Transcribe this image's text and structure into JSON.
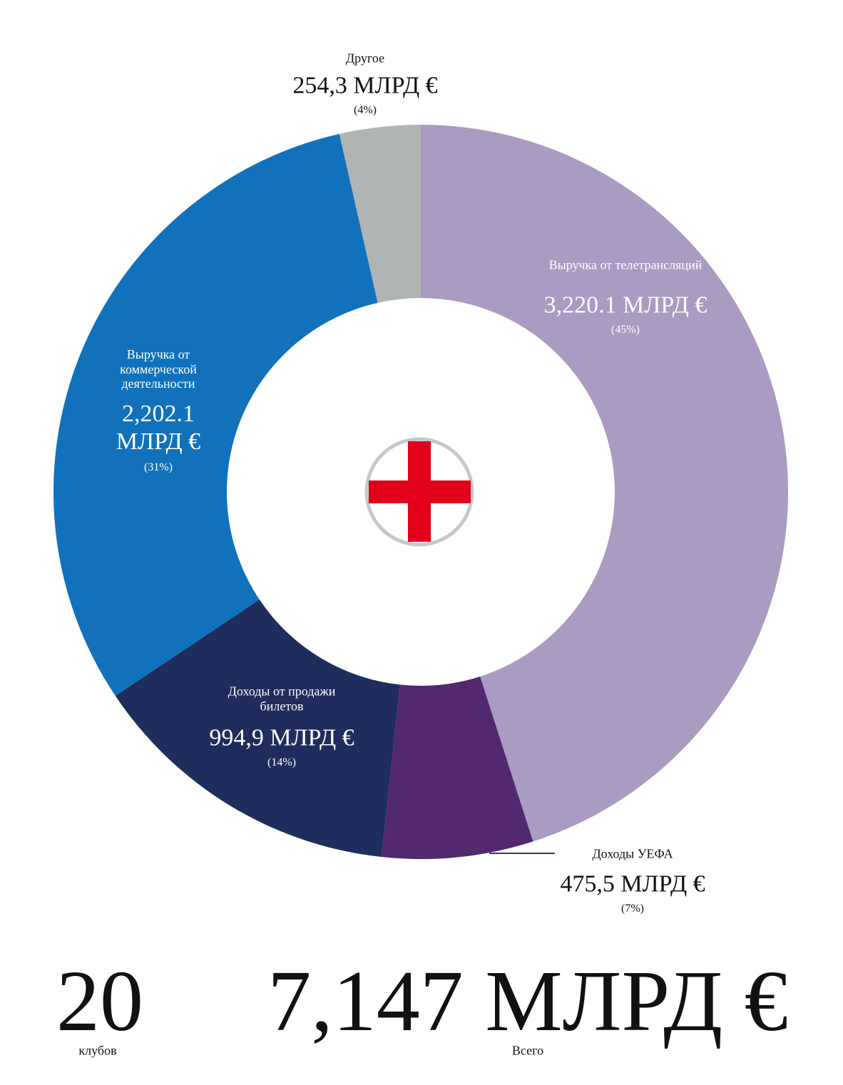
{
  "chart_data": {
    "type": "donut",
    "categories": [
      "Выручка от телетрансляций",
      "Доходы УЕФА",
      "Доходы от продажи билетов",
      "Выручка от коммерческой деятельности",
      "Другое"
    ],
    "values": [
      3220.1,
      475.5,
      994.9,
      2202.1,
      254.3
    ],
    "value_labels": [
      "3,220.1 МЛРД €",
      "475,5 МЛРД €",
      "994,9 МЛРД €",
      "2,202.1 МЛРД €",
      "254,3 МЛРД €"
    ],
    "percent_labels": [
      "(45%)",
      "(7%)",
      "(14%)",
      "(31%)",
      "(4%)"
    ],
    "colors": [
      "#a99bc1",
      "#52286e",
      "#1e2d5c",
      "#1172bb",
      "#b0b4b5"
    ]
  },
  "footer": {
    "clubs": 20,
    "clubs_caption": "клубов",
    "total": "7,147 МЛРД €",
    "total_caption": "Всего"
  }
}
